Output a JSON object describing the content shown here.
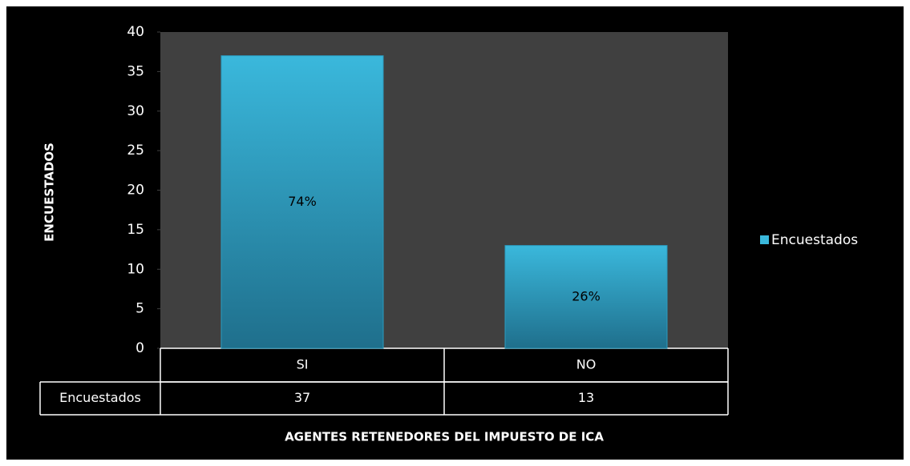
{
  "chart_data": {
    "type": "bar",
    "y_axis_title": "ENCUESTADOS",
    "x_axis_title": "AGENTES RETENEDORES  DEL IMPUESTO  DE ICA",
    "categories": [
      "SI",
      "NO"
    ],
    "series": [
      {
        "name": "Encuestados",
        "color": "#3ab8dc",
        "values": [
          37,
          13
        ]
      }
    ],
    "data_labels": [
      "74%",
      "26%"
    ],
    "ylim": [
      0,
      40
    ],
    "yticks": [
      0,
      5,
      10,
      15,
      20,
      25,
      30,
      35,
      40
    ],
    "legend": "right",
    "data_table": true
  }
}
